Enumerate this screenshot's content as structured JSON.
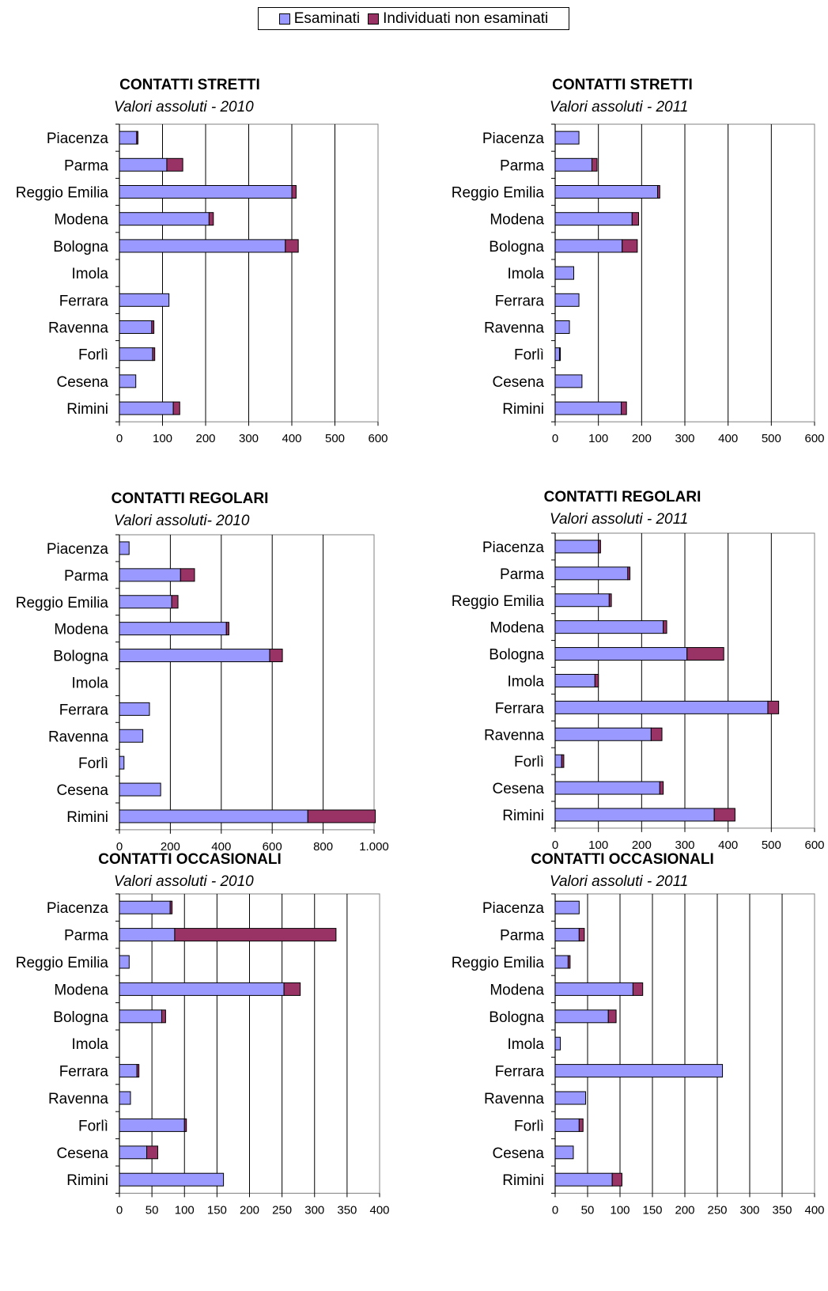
{
  "legend": {
    "esaminati": "Esaminati",
    "non_esaminati": "Individuati non esaminati"
  },
  "colors": {
    "esaminati": "#9999ff",
    "non_esaminati": "#993366",
    "grid": "#000000"
  },
  "chart_data": [
    {
      "type": "bar",
      "orientation": "horizontal",
      "stacked": true,
      "title": "CONTATTI STRETTI",
      "subtitle": "Valori assoluti - 2010",
      "categories": [
        "Piacenza",
        "Parma",
        "Reggio Emilia",
        "Modena",
        "Bologna",
        "Imola",
        "Ferrara",
        "Ravenna",
        "Forlì",
        "Cesena",
        "Rimini"
      ],
      "series": [
        {
          "name": "Esaminati",
          "values": [
            40,
            110,
            400,
            208,
            385,
            0,
            115,
            75,
            77,
            38,
            125
          ]
        },
        {
          "name": "Individuati non esaminati",
          "values": [
            3,
            37,
            10,
            10,
            30,
            0,
            0,
            5,
            5,
            0,
            15
          ]
        }
      ],
      "xlim": [
        0,
        600
      ],
      "ticks": [
        "0",
        "100",
        "200",
        "300",
        "400",
        "500",
        "600"
      ],
      "grid": "vertical"
    },
    {
      "type": "bar",
      "orientation": "horizontal",
      "stacked": true,
      "title": "CONTATTI STRETTI",
      "subtitle": "Valori assoluti - 2011",
      "categories": [
        "Piacenza",
        "Parma",
        "Reggio Emilia",
        "Modena",
        "Bologna",
        "Imola",
        "Ferrara",
        "Ravenna",
        "Forlì",
        "Cesena",
        "Rimini"
      ],
      "series": [
        {
          "name": "Esaminati",
          "values": [
            55,
            85,
            237,
            178,
            155,
            43,
            55,
            33,
            10,
            62,
            153
          ]
        },
        {
          "name": "Individuati non esaminati",
          "values": [
            0,
            12,
            5,
            15,
            35,
            0,
            0,
            0,
            2,
            0,
            12
          ]
        }
      ],
      "xlim": [
        0,
        600
      ],
      "ticks": [
        "0",
        "100",
        "200",
        "300",
        "400",
        "500",
        "600"
      ],
      "grid": "vertical"
    },
    {
      "type": "bar",
      "orientation": "horizontal",
      "stacked": true,
      "title": "CONTATTI REGOLARI",
      "subtitle": "Valori assoluti- 2010",
      "categories": [
        "Piacenza",
        "Parma",
        "Reggio Emilia",
        "Modena",
        "Bologna",
        "Imola",
        "Ferrara",
        "Ravenna",
        "Forlì",
        "Cesena",
        "Rimini"
      ],
      "series": [
        {
          "name": "Esaminati",
          "values": [
            38,
            240,
            205,
            420,
            590,
            0,
            118,
            92,
            18,
            162,
            740
          ]
        },
        {
          "name": "Individuati non esaminati",
          "values": [
            0,
            55,
            25,
            10,
            50,
            0,
            0,
            0,
            0,
            0,
            265
          ]
        }
      ],
      "xlim": [
        0,
        1000
      ],
      "ticks": [
        "0",
        "200",
        "400",
        "600",
        "800",
        "1.000"
      ],
      "grid": "vertical"
    },
    {
      "type": "bar",
      "orientation": "horizontal",
      "stacked": true,
      "title": "CONTATTI REGOLARI",
      "subtitle": "Valori assoluti - 2011",
      "categories": [
        "Piacenza",
        "Parma",
        "Reggio Emilia",
        "Modena",
        "Bologna",
        "Imola",
        "Ferrara",
        "Ravenna",
        "Forlì",
        "Cesena",
        "Rimini"
      ],
      "series": [
        {
          "name": "Esaminati",
          "values": [
            100,
            168,
            125,
            250,
            305,
            92,
            492,
            222,
            15,
            242,
            368
          ]
        },
        {
          "name": "Individuati non esaminati",
          "values": [
            5,
            5,
            5,
            8,
            85,
            8,
            25,
            25,
            5,
            8,
            48
          ]
        }
      ],
      "xlim": [
        0,
        600
      ],
      "ticks": [
        "0",
        "100",
        "200",
        "300",
        "400",
        "500",
        "600"
      ],
      "grid": "vertical"
    },
    {
      "type": "bar",
      "orientation": "horizontal",
      "stacked": true,
      "title": "CONTATTI OCCASIONALI",
      "subtitle": "Valori assoluti - 2010",
      "categories": [
        "Piacenza",
        "Parma",
        "Reggio Emilia",
        "Modena",
        "Bologna",
        "Imola",
        "Ferrara",
        "Ravenna",
        "Forlì",
        "Cesena",
        "Rimini"
      ],
      "series": [
        {
          "name": "Esaminati",
          "values": [
            78,
            85,
            15,
            253,
            65,
            0,
            27,
            17,
            100,
            42,
            160
          ]
        },
        {
          "name": "Individuati non esaminati",
          "values": [
            3,
            248,
            0,
            25,
            6,
            0,
            3,
            0,
            3,
            17,
            0
          ]
        }
      ],
      "xlim": [
        0,
        400
      ],
      "ticks": [
        "0",
        "50",
        "100",
        "150",
        "200",
        "250",
        "300",
        "350",
        "400"
      ],
      "grid": "vertical"
    },
    {
      "type": "bar",
      "orientation": "horizontal",
      "stacked": true,
      "title": "CONTATTI OCCASIONALI",
      "subtitle": "Valori assoluti - 2011",
      "categories": [
        "Piacenza",
        "Parma",
        "Reggio Emilia",
        "Modena",
        "Bologna",
        "Imola",
        "Ferrara",
        "Ravenna",
        "Forlì",
        "Cesena",
        "Rimini"
      ],
      "series": [
        {
          "name": "Esaminati",
          "values": [
            37,
            37,
            20,
            120,
            82,
            8,
            258,
            47,
            37,
            28,
            88
          ]
        },
        {
          "name": "Individuati non esaminati",
          "values": [
            0,
            8,
            3,
            15,
            12,
            0,
            0,
            0,
            6,
            0,
            15
          ]
        }
      ],
      "xlim": [
        0,
        400
      ],
      "ticks": [
        "0",
        "50",
        "100",
        "150",
        "200",
        "250",
        "300",
        "350",
        "400"
      ],
      "grid": "vertical"
    }
  ]
}
